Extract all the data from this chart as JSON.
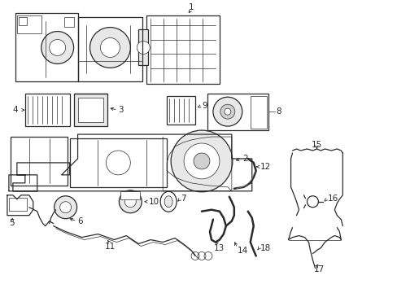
{
  "background_color": "#ffffff",
  "line_color": "#2a2a2a",
  "label_color": "#000000",
  "figsize": [
    4.89,
    3.6
  ],
  "dpi": 100,
  "lw_main": 0.9,
  "lw_thick": 1.8,
  "lw_thin": 0.5
}
